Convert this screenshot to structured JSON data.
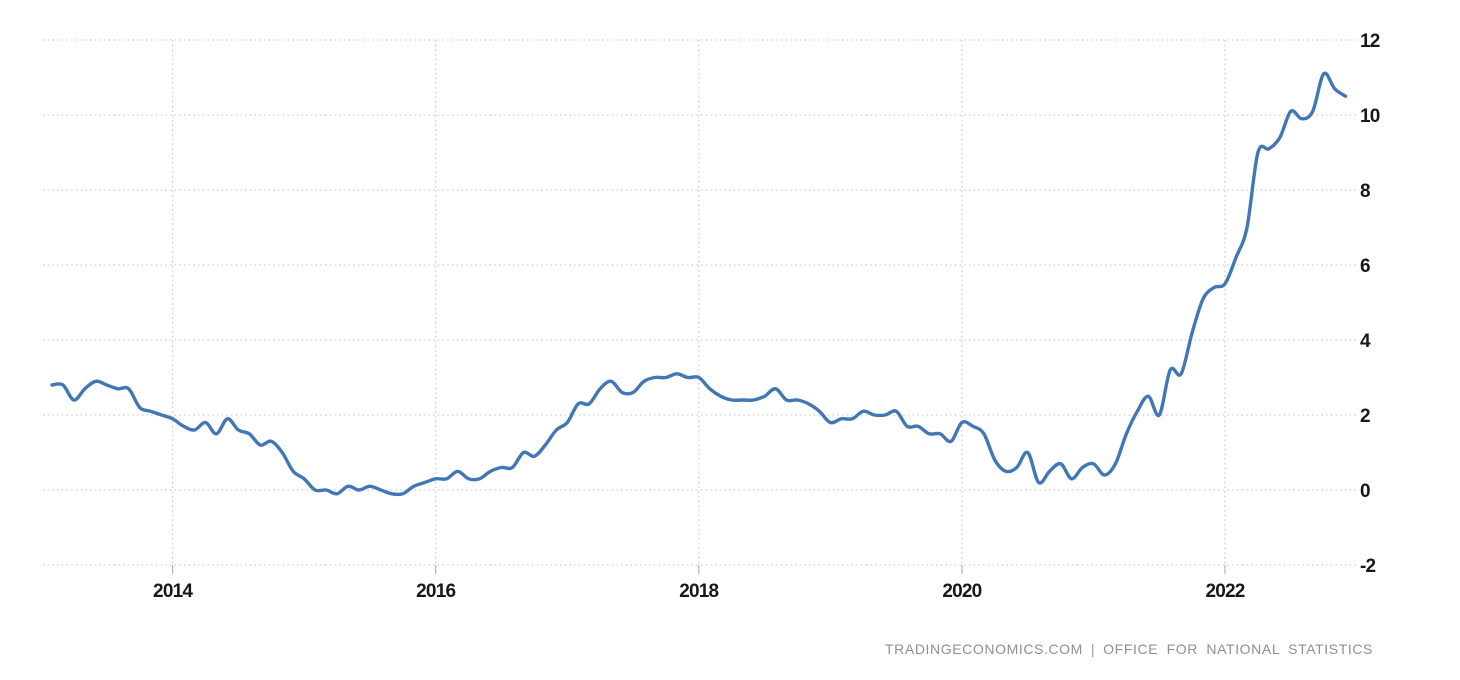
{
  "chart_data": {
    "type": "line",
    "frequency": "monthly",
    "x_start": "2013-02",
    "x_end": "2022-12",
    "values": [
      2.8,
      2.8,
      2.4,
      2.7,
      2.9,
      2.8,
      2.7,
      2.7,
      2.2,
      2.1,
      2.0,
      1.9,
      1.7,
      1.6,
      1.8,
      1.5,
      1.9,
      1.6,
      1.5,
      1.2,
      1.3,
      1.0,
      0.5,
      0.3,
      0.0,
      0.0,
      -0.1,
      0.1,
      0.0,
      0.1,
      0.0,
      -0.1,
      -0.1,
      0.1,
      0.2,
      0.3,
      0.3,
      0.5,
      0.3,
      0.3,
      0.5,
      0.6,
      0.6,
      1.0,
      0.9,
      1.2,
      1.6,
      1.8,
      2.3,
      2.3,
      2.7,
      2.9,
      2.6,
      2.6,
      2.9,
      3.0,
      3.0,
      3.1,
      3.0,
      3.0,
      2.7,
      2.5,
      2.4,
      2.4,
      2.4,
      2.5,
      2.7,
      2.4,
      2.4,
      2.3,
      2.1,
      1.8,
      1.9,
      1.9,
      2.1,
      2.0,
      2.0,
      2.1,
      1.7,
      1.7,
      1.5,
      1.5,
      1.3,
      1.8,
      1.7,
      1.5,
      0.8,
      0.5,
      0.6,
      1.0,
      0.2,
      0.5,
      0.7,
      0.3,
      0.6,
      0.7,
      0.4,
      0.7,
      1.5,
      2.1,
      2.5,
      2.0,
      3.2,
      3.1,
      4.2,
      5.1,
      5.4,
      5.5,
      6.2,
      7.0,
      9.0,
      9.1,
      9.4,
      10.1,
      9.9,
      10.1,
      11.1,
      10.7,
      10.5
    ],
    "yaxis": {
      "tick_labels": [
        "12",
        "10",
        "8",
        "6",
        "4",
        "2",
        "0",
        "-2"
      ],
      "tick_values": [
        12,
        10,
        8,
        6,
        4,
        2,
        0,
        -2
      ],
      "min": -2,
      "max": 12,
      "side": "right"
    },
    "xaxis": {
      "tick_labels": [
        "2014",
        "2016",
        "2018",
        "2020",
        "2022"
      ],
      "tick_month_indices": [
        11,
        35,
        59,
        83,
        107
      ]
    },
    "grid": "dotted",
    "legend": "none",
    "title": "",
    "line_color": "#4077b4",
    "grid_color": "#cbcbcb",
    "tick_text_color": "#181818"
  },
  "attribution": {
    "source_site": "TRADINGECONOMICS.COM",
    "divider": "|",
    "source_org": "OFFICE  FOR  NATIONAL  STATISTICS"
  }
}
